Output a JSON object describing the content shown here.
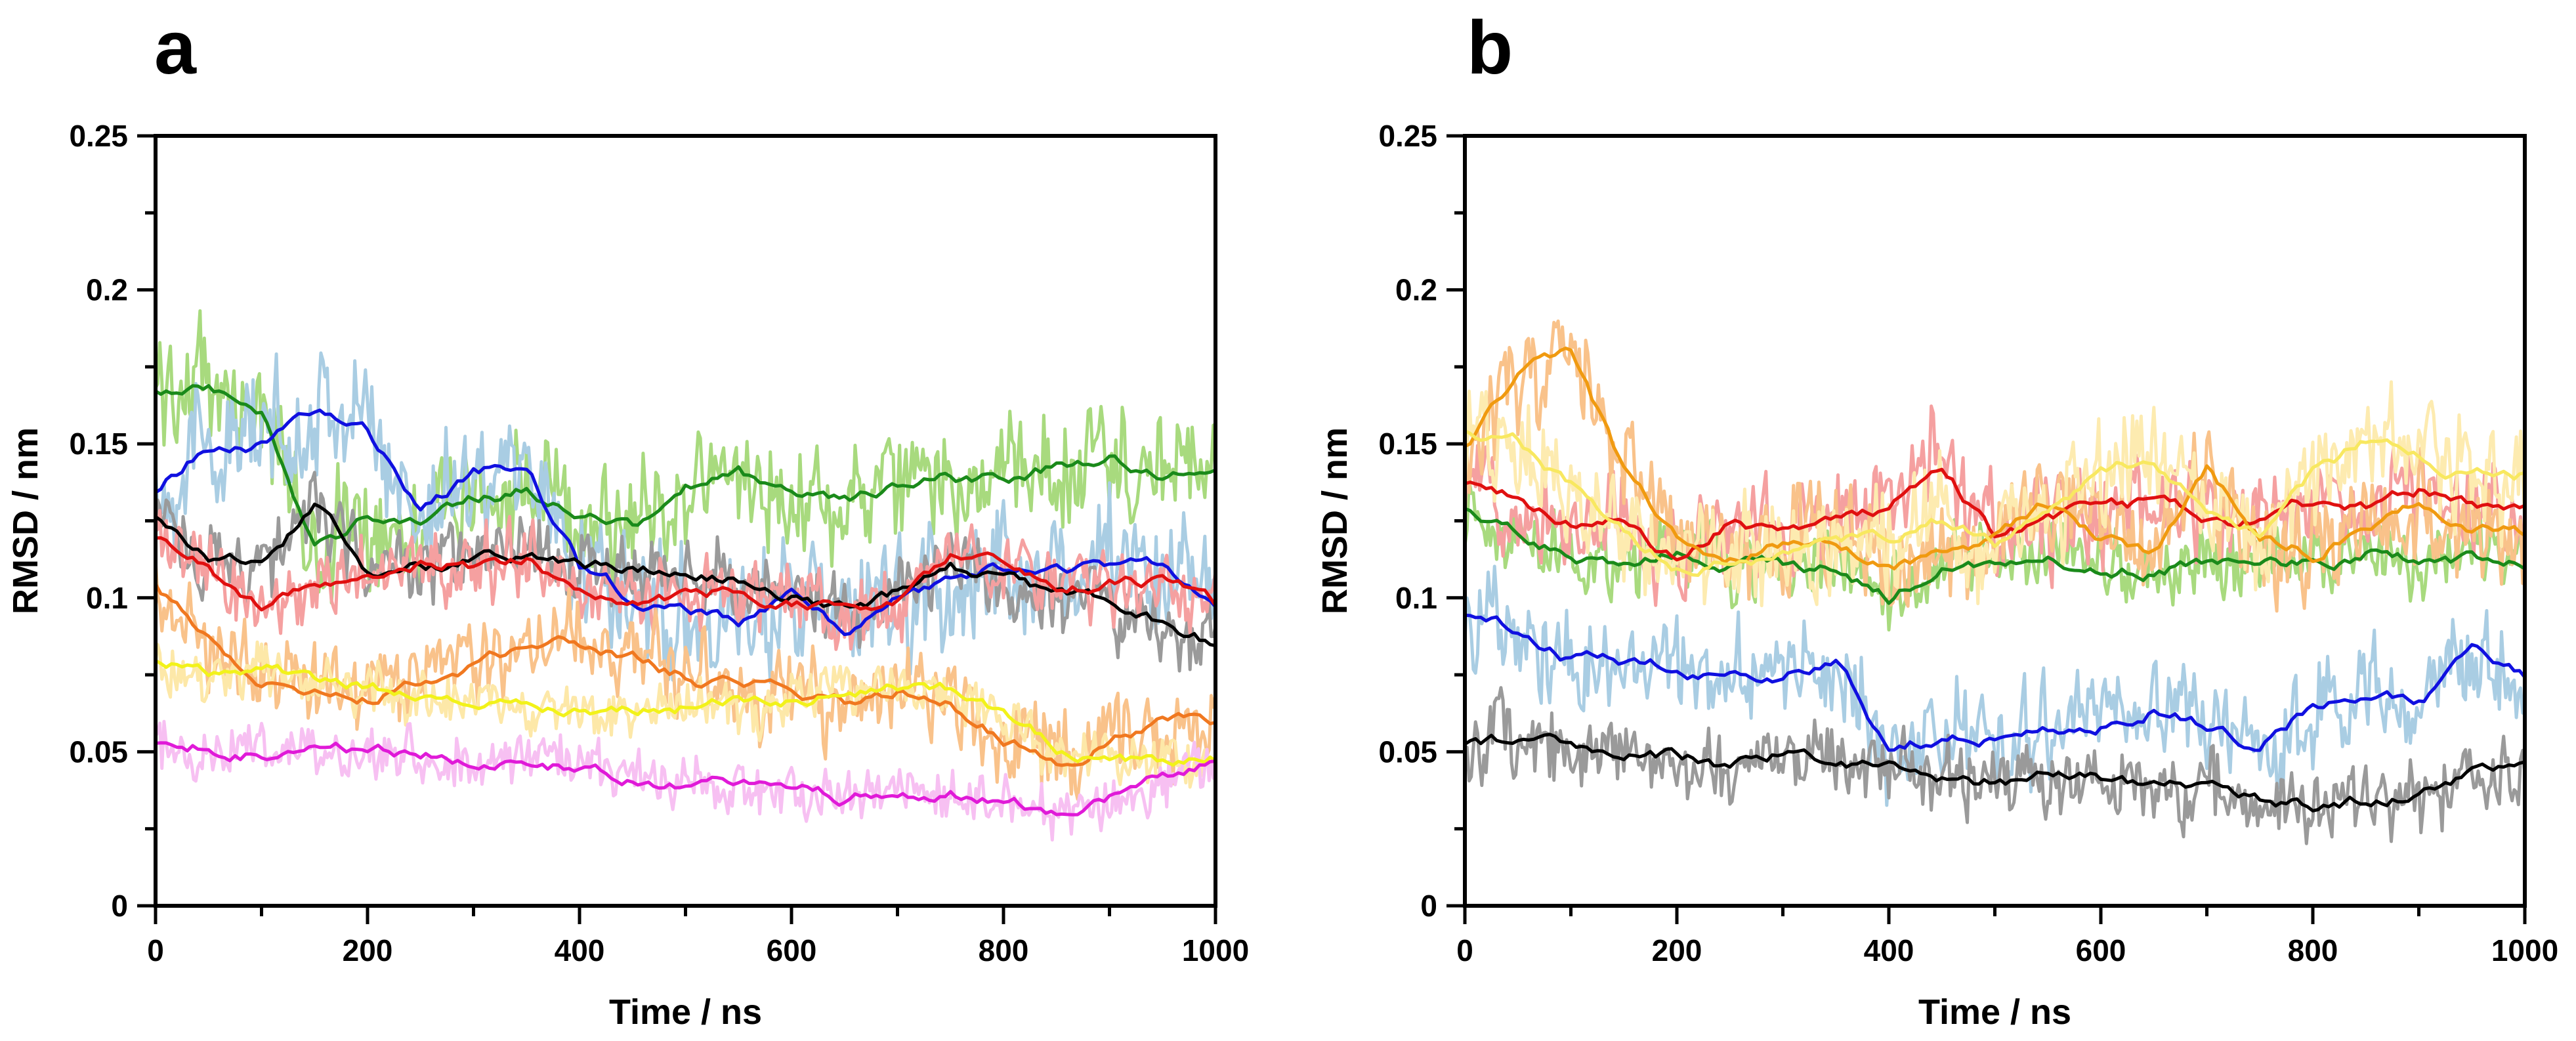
{
  "chart_data": [
    {
      "type": "line",
      "panel": "a",
      "xlabel": "Time / ns",
      "ylabel": "RMSD / nm",
      "xlim": [
        0,
        1000
      ],
      "ylim": [
        0,
        0.25
      ],
      "xticks": [
        "0",
        "200",
        "400",
        "600",
        "800",
        "1000"
      ],
      "yticks": [
        "0",
        "0.05",
        "0.1",
        "0.15",
        "0.2",
        "0.25"
      ],
      "x": [
        0,
        50,
        100,
        150,
        200,
        250,
        300,
        350,
        400,
        450,
        500,
        550,
        600,
        650,
        700,
        750,
        800,
        850,
        900,
        950,
        1000
      ],
      "series": [
        {
          "name": "green",
          "color": "#1a8a1a",
          "band_color": "#a8da7e",
          "band_noise": 0.022,
          "values": [
            0.168,
            0.17,
            0.16,
            0.115,
            0.125,
            0.125,
            0.132,
            0.135,
            0.128,
            0.122,
            0.135,
            0.14,
            0.133,
            0.13,
            0.135,
            0.14,
            0.138,
            0.143,
            0.145,
            0.14,
            0.142
          ]
        },
        {
          "name": "blue",
          "color": "#1010e0",
          "band_color": "#a9cde3",
          "band_noise": 0.024,
          "values": [
            0.135,
            0.15,
            0.15,
            0.162,
            0.155,
            0.128,
            0.14,
            0.145,
            0.11,
            0.1,
            0.095,
            0.092,
            0.1,
            0.09,
            0.1,
            0.105,
            0.11,
            0.108,
            0.11,
            0.11,
            0.1
          ]
        },
        {
          "name": "black",
          "color": "#000000",
          "band_color": "#9a9a9a",
          "band_noise": 0.014,
          "values": [
            0.127,
            0.112,
            0.11,
            0.13,
            0.108,
            0.11,
            0.112,
            0.115,
            0.11,
            0.11,
            0.108,
            0.105,
            0.102,
            0.095,
            0.1,
            0.112,
            0.105,
            0.1,
            0.098,
            0.092,
            0.085
          ]
        },
        {
          "name": "red",
          "color": "#e01010",
          "band_color": "#f5a0a0",
          "band_noise": 0.014,
          "values": [
            0.12,
            0.11,
            0.095,
            0.105,
            0.11,
            0.113,
            0.11,
            0.112,
            0.103,
            0.1,
            0.1,
            0.103,
            0.1,
            0.095,
            0.1,
            0.112,
            0.108,
            0.105,
            0.105,
            0.105,
            0.097
          ]
        },
        {
          "name": "orange",
          "color": "#f07820",
          "band_color": "#f9c28a",
          "band_noise": 0.016,
          "values": [
            0.105,
            0.085,
            0.075,
            0.072,
            0.07,
            0.075,
            0.08,
            0.085,
            0.085,
            0.08,
            0.075,
            0.07,
            0.07,
            0.065,
            0.07,
            0.068,
            0.055,
            0.048,
            0.055,
            0.058,
            0.06
          ]
        },
        {
          "name": "yellow",
          "color": "#f2f21a",
          "band_color": "#fde8a8",
          "band_noise": 0.01,
          "values": [
            0.08,
            0.075,
            0.078,
            0.072,
            0.07,
            0.068,
            0.065,
            0.063,
            0.062,
            0.063,
            0.065,
            0.065,
            0.068,
            0.07,
            0.072,
            0.07,
            0.06,
            0.05,
            0.048,
            0.045,
            0.048
          ]
        },
        {
          "name": "magenta",
          "color": "#e01ad8",
          "band_color": "#f7c0f2",
          "band_noise": 0.01,
          "values": [
            0.053,
            0.052,
            0.05,
            0.05,
            0.05,
            0.048,
            0.047,
            0.048,
            0.045,
            0.042,
            0.04,
            0.038,
            0.037,
            0.035,
            0.038,
            0.038,
            0.033,
            0.03,
            0.035,
            0.04,
            0.045
          ]
        }
      ]
    },
    {
      "type": "line",
      "panel": "b",
      "xlabel": "Time / ns",
      "ylabel": "RMSD / nm",
      "xlim": [
        0,
        1000
      ],
      "ylim": [
        0,
        0.25
      ],
      "xticks": [
        "0",
        "200",
        "400",
        "600",
        "800",
        "1000"
      ],
      "yticks": [
        "0",
        "0.05",
        "0.1",
        "0.15",
        "0.2",
        "0.25"
      ],
      "x": [
        0,
        50,
        100,
        150,
        200,
        250,
        300,
        350,
        400,
        450,
        500,
        550,
        600,
        650,
        700,
        750,
        800,
        850,
        900,
        950,
        1000
      ],
      "series": [
        {
          "name": "green",
          "color": "#1a8a1a",
          "band_color": "#a8da7e",
          "band_noise": 0.014,
          "values": [
            0.13,
            0.12,
            0.115,
            0.11,
            0.115,
            0.112,
            0.11,
            0.11,
            0.1,
            0.11,
            0.112,
            0.115,
            0.11,
            0.11,
            0.112,
            0.112,
            0.11,
            0.115,
            0.112,
            0.112,
            0.11
          ]
        },
        {
          "name": "red",
          "color": "#e01010",
          "band_color": "#f5a0a0",
          "band_noise": 0.018,
          "values": [
            0.138,
            0.132,
            0.125,
            0.125,
            0.112,
            0.125,
            0.12,
            0.125,
            0.13,
            0.145,
            0.12,
            0.125,
            0.128,
            0.13,
            0.125,
            0.125,
            0.13,
            0.13,
            0.135,
            0.13,
            0.13
          ]
        },
        {
          "name": "orange",
          "color": "#f09a10",
          "band_color": "#f9c28a",
          "band_noise": 0.02,
          "values": [
            0.15,
            0.17,
            0.18,
            0.14,
            0.12,
            0.115,
            0.118,
            0.12,
            0.11,
            0.115,
            0.12,
            0.13,
            0.12,
            0.115,
            0.14,
            0.12,
            0.115,
            0.125,
            0.13,
            0.12,
            0.12
          ]
        },
        {
          "name": "light-yellow",
          "color": "#f8e860",
          "band_color": "#fdebb0",
          "band_noise": 0.02,
          "values": [
            0.155,
            0.15,
            0.135,
            0.12,
            0.11,
            0.112,
            0.115,
            0.12,
            0.12,
            0.125,
            0.118,
            0.13,
            0.14,
            0.145,
            0.13,
            0.12,
            0.14,
            0.15,
            0.145,
            0.14,
            0.14
          ]
        },
        {
          "name": "blue",
          "color": "#1010e0",
          "band_color": "#a9cde3",
          "band_noise": 0.018,
          "values": [
            0.095,
            0.09,
            0.08,
            0.078,
            0.077,
            0.075,
            0.075,
            0.078,
            0.05,
            0.055,
            0.055,
            0.055,
            0.058,
            0.065,
            0.058,
            0.05,
            0.065,
            0.07,
            0.065,
            0.08,
            0.073
          ]
        },
        {
          "name": "black",
          "color": "#000000",
          "band_color": "#9a9a9a",
          "band_noise": 0.014,
          "values": [
            0.053,
            0.053,
            0.05,
            0.05,
            0.048,
            0.045,
            0.05,
            0.048,
            0.045,
            0.042,
            0.04,
            0.042,
            0.04,
            0.038,
            0.04,
            0.035,
            0.032,
            0.035,
            0.038,
            0.042,
            0.045
          ]
        }
      ]
    }
  ]
}
